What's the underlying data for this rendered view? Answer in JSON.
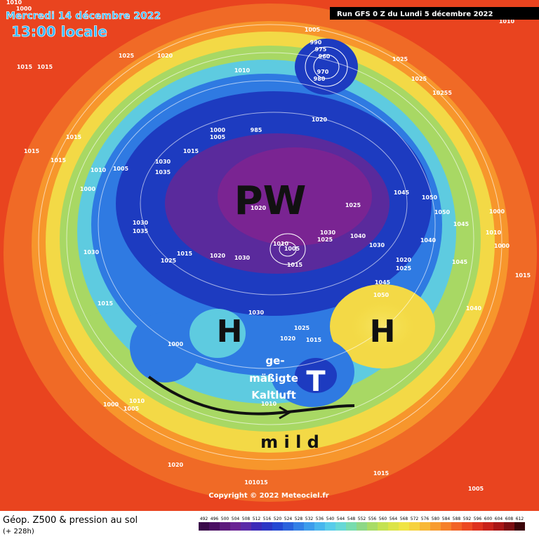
{
  "header": {
    "date": "Mercredi 14 décembre 2022",
    "time": "13:00 locale",
    "run": "Run GFS 0 Z du Lundi 5 décembre 2022"
  },
  "annotations": {
    "polar_vortex": "PW",
    "high_west": "H",
    "high_east": "H",
    "low": "T",
    "cold_air_1": "ge-",
    "cold_air_2": "mäßigte",
    "cold_air_3": "Kaltluft",
    "mild": "m i l d"
  },
  "pressure_labels": [
    1005,
    990,
    975,
    960,
    970,
    980,
    1025,
    1025,
    10255,
    1010,
    1015,
    1025,
    1020,
    1015,
    1010,
    1020,
    1000,
    1005,
    985,
    1015,
    1015,
    1010,
    1005,
    1000,
    1030,
    1035,
    1015,
    1045,
    1050,
    1050,
    1000,
    1025,
    1020,
    1030,
    1035,
    1030,
    1015,
    1020,
    1030,
    1010,
    1005,
    1015,
    1030,
    1025,
    1040,
    1030,
    1040,
    1045,
    1010,
    1000,
    1045,
    1020,
    1025,
    1045,
    1050,
    1040,
    1025,
    1015,
    1030,
    1025,
    1020,
    1015,
    1000,
    1010,
    1000,
    1010,
    1005,
    1020,
    1015,
    1005,
    101015,
    1000,
    1015,
    1010,
    1015
  ],
  "copyright": "Copyright © 2022 Meteociel.fr",
  "footer": {
    "title": "Géop. Z500 & pression au sol",
    "lead": "(+ 228h)"
  },
  "scale": {
    "labels": [
      492,
      496,
      500,
      504,
      508,
      512,
      516,
      520,
      524,
      528,
      532,
      536,
      540,
      544,
      548,
      552,
      556,
      560,
      564,
      568,
      572,
      576,
      580,
      584,
      588,
      592,
      596,
      600,
      604,
      608,
      612
    ],
    "colors": [
      "#3a0a4a",
      "#4b0f63",
      "#5c1a7c",
      "#6a2394",
      "#5a2aa8",
      "#3c2ab8",
      "#2c36c4",
      "#2448d2",
      "#2a62dc",
      "#3380e6",
      "#3c9cec",
      "#48b6ee",
      "#58ccea",
      "#66d8d6",
      "#78dcae",
      "#8ed886",
      "#a8dc66",
      "#c4e252",
      "#dce448",
      "#f0e444",
      "#f6d23e",
      "#f8b836",
      "#f89c30",
      "#f6802a",
      "#f26426",
      "#ec4a22",
      "#de321e",
      "#c8221a",
      "#a81616",
      "#7c0e12",
      "#3c060a"
    ]
  }
}
